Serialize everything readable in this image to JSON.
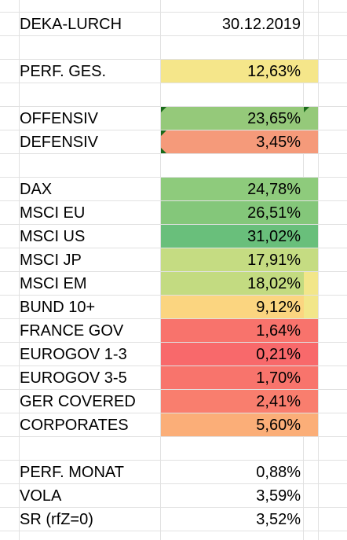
{
  "header": {
    "name": "DEKA-LURCH",
    "date": "30.12.2019"
  },
  "rows": [
    {
      "label": "PERF. GES.",
      "value": "12,63%",
      "color": "#f5e68a"
    },
    {
      "label": "OFFENSIV",
      "value": "23,65%",
      "color": "#95c97a"
    },
    {
      "label": "DEFENSIV",
      "value": "3,45%",
      "color": "#f59a7a"
    },
    {
      "label": "DAX",
      "value": "24,78%",
      "color": "#8ecb7c"
    },
    {
      "label": "MSCI EU",
      "value": "26,51%",
      "color": "#84c77a"
    },
    {
      "label": "MSCI US",
      "value": "31,02%",
      "color": "#69bf7b"
    },
    {
      "label": "MSCI JP",
      "value": "17,91%",
      "color": "#c5dc82"
    },
    {
      "label": "MSCI EM",
      "value": "18,02%",
      "color": "#c3db81"
    },
    {
      "label": "BUND 10+",
      "value": "9,12%",
      "color": "#fbd580"
    },
    {
      "label": "FRANCE GOV",
      "value": "1,64%",
      "color": "#f8736c"
    },
    {
      "label": "EUROGOV 1-3",
      "value": "0,21%",
      "color": "#f8696b"
    },
    {
      "label": "EUROGOV 3-5",
      "value": "1,70%",
      "color": "#f8746c"
    },
    {
      "label": "GER COVERED",
      "value": "2,41%",
      "color": "#f97e6e"
    },
    {
      "label": "CORPORATES",
      "value": "5,60%",
      "color": "#fbae78"
    },
    {
      "label": "PERF. MONAT",
      "value": "0,88%"
    },
    {
      "label": "VOLA",
      "value": "3,59%"
    },
    {
      "label": "SR (rfZ=0)",
      "value": "3,52%"
    }
  ]
}
